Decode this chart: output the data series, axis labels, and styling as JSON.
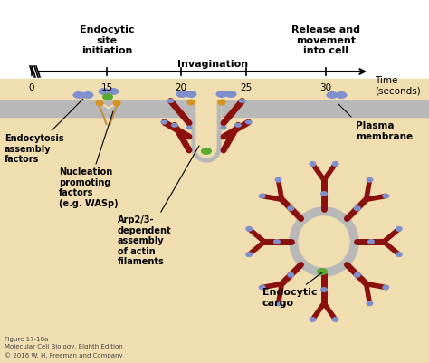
{
  "bg_color": "#f0ddb0",
  "white_bg": "#ffffff",
  "membrane_color": "#b8b8b8",
  "actin_color": "#8b1010",
  "ef_color": "#8090cc",
  "green_color": "#5aaa30",
  "orange_color": "#d89020",
  "title_timeline": [
    "Endocytic\nsite\ninitiation",
    "Invagination",
    "Release and\nmovement\ninto cell"
  ],
  "timeline_label": "Time\n(seconds)",
  "tick_labels": [
    "0",
    "15",
    "20",
    "25",
    "30"
  ],
  "labels": {
    "endocytosis": "Endocytosis\nassembly\nfactors",
    "nucleation": "Nucleation\npromoting\nfactors\n(e.g. WASp)",
    "arp23": "Arp2/3-\ndependent\nassembly\nof actin\nfilaments",
    "plasma": "Plasma\nmembrane",
    "endocytic_cargo": "Endocytic\ncargo"
  },
  "figure_caption": "Figure 17-18a\nMolecular Cell Biology, Eighth Edition\n© 2016 W. H. Freeman and Company"
}
